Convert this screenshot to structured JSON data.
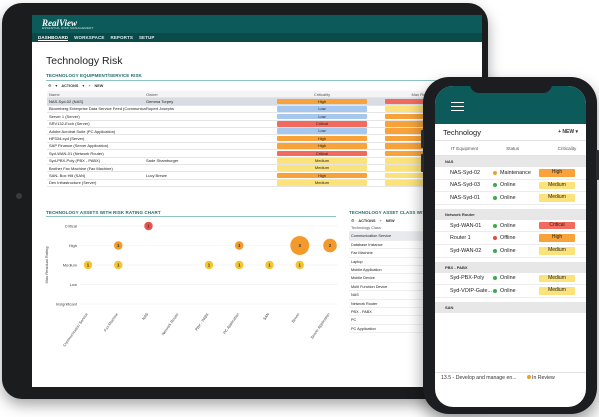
{
  "tablet": {
    "logo": "RealView",
    "logo_sub": "ESSENTIAL RISK MANAGEMENT",
    "nav": [
      "DASHBOARD",
      "WORKSPACE",
      "REPORTS",
      "SETUP"
    ],
    "page_title": "Technology Risk",
    "section1_title": "TECHNOLOGY EQUIPMENT/SERVICE RISK",
    "toolbar": {
      "actions": "ACTIONS",
      "new": "NEW"
    },
    "columns": {
      "name": "Name",
      "owner": "Owner",
      "criticality": "Criticality",
      "residual": "Max Residual Rating"
    },
    "rows": [
      {
        "name": "NAS-Syd-02 (NAS)",
        "owner": "Gemma Torpey",
        "crit": "High",
        "res": "Critical"
      },
      {
        "name": "Bloomberg Enterprise Data Service Feed (Communica...",
        "owner": "Rupert Josephs",
        "crit": "Low",
        "res": "Medium"
      },
      {
        "name": "Server 1 (Server)",
        "owner": "",
        "crit": "Low",
        "res": "High"
      },
      {
        "name": "SRV132-Exch (Server)",
        "owner": "",
        "crit": "Critical",
        "res": "High"
      },
      {
        "name": "Adobe Acrobat Suite (PC Application)",
        "owner": "",
        "crit": "Low",
        "res": "High"
      },
      {
        "name": "HP334-xyd (Server)",
        "owner": "",
        "crit": "High",
        "res": "High"
      },
      {
        "name": "SAP Finance (Server Application)",
        "owner": "",
        "crit": "High",
        "res": "High"
      },
      {
        "name": "Syd-WAN-01 (Network Router)",
        "owner": "",
        "crit": "Critical",
        "res": "High"
      },
      {
        "name": "Syd-PBX-Poly (PBX - PABX)",
        "owner": "Sade Shamburger",
        "crit": "Medium",
        "res": "Medium"
      },
      {
        "name": "Brother Fax Machine (Fax Machine)",
        "owner": "",
        "crit": "Medium",
        "res": "Medium"
      },
      {
        "name": "SAN- Box Hill (SAN)",
        "owner": "Lucy Brewe",
        "crit": "High",
        "res": "Medium"
      },
      {
        "name": "Dev Infrastructure (Server)",
        "owner": "",
        "crit": "Medium",
        "res": "Medium"
      }
    ],
    "section2_title": "TECHNOLOGY ASSETS WITH RISK RATING CHART",
    "section3_title": "TECHNOLOGY ASSET CLASS WITH RISK",
    "asset_classes": [
      "Technology Class",
      "Communication Service",
      "Database Instance",
      "Fax Machine",
      "Laptop",
      "Mobile Application",
      "Mobile Device",
      "Multi Function Device",
      "NAS",
      "Network Router",
      "PBX - PABX",
      "PC",
      "PC Application"
    ]
  },
  "chart_data": {
    "type": "scatter",
    "title": "",
    "ylabel": "Max Residual Rating",
    "y_levels": [
      "Insignificant",
      "Low",
      "Medium",
      "High",
      "Critical"
    ],
    "categories": [
      "Communication Service",
      "Fax Machine",
      "NAS",
      "Network Router",
      "PBX - PABX",
      "PC Application",
      "SAN",
      "Server",
      "Server Application"
    ],
    "points": [
      {
        "x": "Communication Service",
        "y": "Medium",
        "count": 1,
        "color": "#f5c531"
      },
      {
        "x": "Fax Machine",
        "y": "High",
        "count": 1,
        "color": "#f39a2b"
      },
      {
        "x": "Fax Machine",
        "y": "Medium",
        "count": 1,
        "color": "#f5c531"
      },
      {
        "x": "NAS",
        "y": "Critical",
        "count": 1,
        "color": "#e8544b"
      },
      {
        "x": "PBX - PABX",
        "y": "Medium",
        "count": 1,
        "color": "#f5c531"
      },
      {
        "x": "PC Application",
        "y": "Medium",
        "count": 1,
        "color": "#f5c531"
      },
      {
        "x": "PC Application",
        "y": "High",
        "count": 1,
        "color": "#f39a2b"
      },
      {
        "x": "SAN",
        "y": "Medium",
        "count": 1,
        "color": "#f5c531"
      },
      {
        "x": "Server",
        "y": "High",
        "count": 3,
        "color": "#f39a2b"
      },
      {
        "x": "Server",
        "y": "Medium",
        "count": 1,
        "color": "#f5c531"
      },
      {
        "x": "Server Application",
        "y": "High",
        "count": 2,
        "color": "#f39a2b"
      }
    ]
  },
  "phone": {
    "title": "Technology",
    "new": "NEW",
    "columns": {
      "equipment": "IT Equipment",
      "status": "Status",
      "criticality": "Criticality"
    },
    "groups": [
      {
        "name": "NAS",
        "rows": [
          {
            "name": "NAS-Syd-02",
            "status": "Maintenance",
            "status_color": "#f0a12c",
            "crit": "High"
          },
          {
            "name": "NAS-Syd-03",
            "status": "Online",
            "status_color": "#3cab4c",
            "crit": "Medium"
          },
          {
            "name": "NAS-Syd-01",
            "status": "Online",
            "status_color": "#3cab4c",
            "crit": "Medium"
          }
        ]
      },
      {
        "name": "Network Router",
        "rows": [
          {
            "name": "Syd-WAN-01",
            "status": "Online",
            "status_color": "#3cab4c",
            "crit": "Critical"
          },
          {
            "name": "Router 1",
            "status": "Offline",
            "status_color": "#e24a42",
            "crit": "High"
          },
          {
            "name": "Syd-WAN-02",
            "status": "Online",
            "status_color": "#3cab4c",
            "crit": "Medium"
          }
        ]
      },
      {
        "name": "PBX - PABX",
        "rows": [
          {
            "name": "Syd-PBX-Poly",
            "status": "Online",
            "status_color": "#3cab4c",
            "crit": "Medium"
          },
          {
            "name": "Syd-VOIP-Gate...",
            "status": "Online",
            "status_color": "#3cab4c",
            "crit": "Medium"
          }
        ]
      },
      {
        "name": "SAN",
        "rows": []
      }
    ],
    "footer": {
      "task": "13.5 - Develop and manage en...",
      "status": "In Review"
    }
  },
  "rating_colors": {
    "Critical": "#f26a5e",
    "High": "#f7a33a",
    "Medium": "#fbe27a",
    "Low": "#a7c8ee"
  }
}
